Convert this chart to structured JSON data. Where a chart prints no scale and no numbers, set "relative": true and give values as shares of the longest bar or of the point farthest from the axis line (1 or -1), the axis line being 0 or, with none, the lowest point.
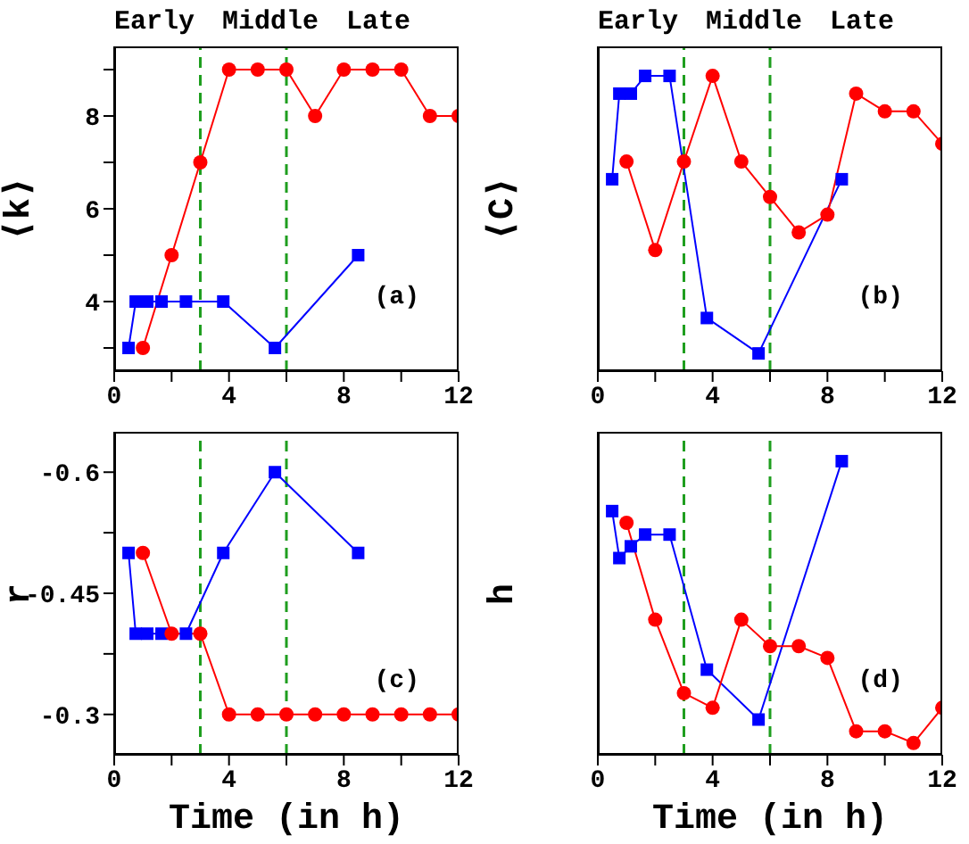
{
  "chart_data": [
    {
      "type": "line",
      "ylabel": "⟨k⟩",
      "xlim": [
        0,
        12
      ],
      "xticks": [
        0,
        {
          "value": 2,
          "label": null
        },
        4,
        {
          "value": 6,
          "label": null
        },
        8,
        {
          "value": 10,
          "label": null
        },
        12
      ],
      "ylim": [
        2.5,
        9.5
      ],
      "yticks": [
        {
          "value": 3,
          "label": null
        },
        4,
        {
          "value": 5,
          "label": null
        },
        6,
        {
          "value": 7,
          "label": null
        },
        8,
        {
          "value": 9,
          "label": null
        }
      ],
      "series": [
        {
          "color": "#0000ff",
          "marker": "square",
          "x": [
            0.5,
            0.75,
            1.15,
            1.65,
            2.5,
            3.8,
            5.6,
            8.5
          ],
          "values": [
            3,
            4,
            4,
            4,
            4,
            4,
            3,
            5
          ]
        },
        {
          "color": "#ff0000",
          "marker": "circle",
          "x": [
            1,
            2,
            3,
            4,
            5,
            6,
            7,
            8,
            9,
            10,
            11,
            12
          ],
          "values": [
            3,
            5,
            7,
            9,
            9,
            9,
            8,
            9,
            9,
            9,
            8,
            8
          ]
        }
      ],
      "ref_lines": [
        {
          "axis": "x",
          "value": 3,
          "color": "#1f9e1f",
          "line_style": "dashed"
        },
        {
          "axis": "x",
          "value": 6,
          "color": "#1f9e1f",
          "line_style": "dashed"
        }
      ],
      "annotations": [
        "Early",
        "Middle",
        "Late",
        "(a)"
      ]
    },
    {
      "type": "line",
      "ylabel": "⟨C⟩",
      "relative": true,
      "tick_labels": "x",
      "xlim": [
        0,
        12
      ],
      "xticks": [
        0,
        {
          "value": 2,
          "label": null
        },
        4,
        {
          "value": 6,
          "label": null
        },
        8,
        {
          "value": 10,
          "label": null
        },
        12
      ],
      "series": [
        {
          "color": "#0000ff",
          "marker": "square",
          "x": [
            0.5,
            0.75,
            1.15,
            1.65,
            2.5,
            3.8,
            5.6,
            8.5
          ],
          "values": [
            0.65,
            0.94,
            0.94,
            1,
            1,
            0.18,
            0.06,
            0.65
          ]
        },
        {
          "color": "#ff0000",
          "marker": "circle",
          "x": [
            1,
            2,
            3,
            4,
            5,
            6,
            7,
            8,
            9,
            10,
            11,
            12
          ],
          "values": [
            0.71,
            0.41,
            0.71,
            1,
            0.71,
            0.59,
            0.47,
            0.53,
            0.94,
            0.88,
            0.88,
            0.77
          ]
        }
      ],
      "ref_lines": [
        {
          "axis": "x",
          "value": 3,
          "color": "#1f9e1f",
          "line_style": "dashed"
        },
        {
          "axis": "x",
          "value": 6,
          "color": "#1f9e1f",
          "line_style": "dashed"
        }
      ],
      "annotations": [
        "Early",
        "Middle",
        "Late",
        "(b)"
      ]
    },
    {
      "type": "line",
      "ylabel": "r",
      "xlabel": "Time (in h)",
      "xlim": [
        0,
        12
      ],
      "xticks": [
        0,
        {
          "value": 2,
          "label": null
        },
        4,
        {
          "value": 6,
          "label": null
        },
        8,
        {
          "value": 10,
          "label": null
        },
        12
      ],
      "ylim": [
        -0.25,
        -0.65
      ],
      "yticks": [
        -0.3,
        {
          "value": -0.375,
          "label": null
        },
        -0.45,
        {
          "value": -0.525,
          "label": null
        },
        -0.6
      ],
      "series": [
        {
          "color": "#0000ff",
          "marker": "square",
          "x": [
            0.5,
            0.75,
            1.15,
            1.65,
            2.5,
            3.8,
            5.6,
            8.5
          ],
          "values": [
            -0.5,
            -0.4,
            -0.4,
            -0.4,
            -0.4,
            -0.5,
            -0.6,
            -0.5
          ]
        },
        {
          "color": "#ff0000",
          "marker": "circle",
          "x": [
            1,
            2,
            3,
            4,
            5,
            6,
            7,
            8,
            9,
            10,
            11,
            12
          ],
          "values": [
            -0.5,
            -0.4,
            -0.4,
            -0.3,
            -0.3,
            -0.3,
            -0.3,
            -0.3,
            -0.3,
            -0.3,
            -0.3,
            -0.3
          ]
        }
      ],
      "ref_lines": [
        {
          "axis": "x",
          "value": 3,
          "color": "#1f9e1f",
          "line_style": "dashed"
        },
        {
          "axis": "x",
          "value": 6,
          "color": "#1f9e1f",
          "line_style": "dashed"
        }
      ],
      "annotations": [
        "(c)"
      ]
    },
    {
      "type": "line",
      "ylabel": "h",
      "xlabel": "Time (in h)",
      "relative": true,
      "tick_labels": "x",
      "xlim": [
        0,
        12
      ],
      "xticks": [
        0,
        {
          "value": 2,
          "label": null
        },
        4,
        {
          "value": 6,
          "label": null
        },
        8,
        {
          "value": 10,
          "label": null
        },
        12
      ],
      "series": [
        {
          "color": "#0000ff",
          "marker": "square",
          "x": [
            0.5,
            0.75,
            1.15,
            1.65,
            2.5,
            3.8,
            5.6,
            8.5
          ],
          "values": [
            0.83,
            0.67,
            0.71,
            0.75,
            0.75,
            0.29,
            0.12,
            1
          ]
        },
        {
          "color": "#ff0000",
          "marker": "circle",
          "x": [
            1,
            2,
            3,
            4,
            5,
            6,
            7,
            8,
            9,
            10,
            11,
            12
          ],
          "values": [
            0.79,
            0.46,
            0.21,
            0.16,
            0.46,
            0.37,
            0.37,
            0.33,
            0.08,
            0.08,
            0.04,
            0.16
          ]
        }
      ],
      "ref_lines": [
        {
          "axis": "x",
          "value": 3,
          "color": "#1f9e1f",
          "line_style": "dashed"
        },
        {
          "axis": "x",
          "value": 6,
          "color": "#1f9e1f",
          "line_style": "dashed"
        }
      ],
      "annotations": [
        "(d)"
      ]
    }
  ]
}
